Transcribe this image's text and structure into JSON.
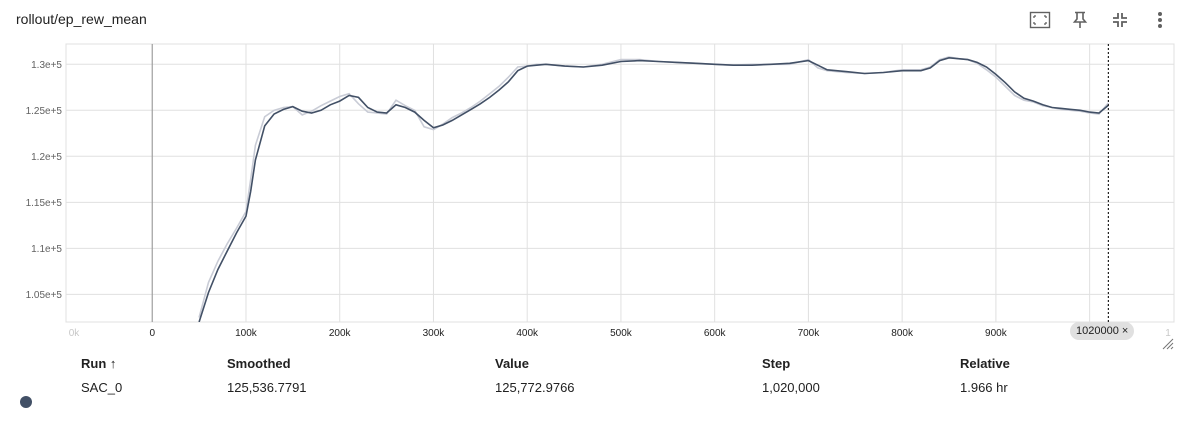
{
  "card": {
    "title": "rollout/ep_rew_mean"
  },
  "toolbar": [
    {
      "name": "fit-domain-icon"
    },
    {
      "name": "pin-icon"
    },
    {
      "name": "collapse-icon"
    },
    {
      "name": "more-vert-icon"
    }
  ],
  "chart_data": {
    "type": "line",
    "title": "",
    "xlabel": "",
    "ylabel": "",
    "xlim": [
      -92000,
      1090000
    ],
    "ylim": [
      102000,
      132200
    ],
    "x_ticks": [
      "0k",
      "0",
      "100k",
      "200k",
      "300k",
      "400k",
      "500k",
      "600k",
      "700k",
      "800k",
      "900k",
      "1"
    ],
    "y_ticks": [
      "1.05e+5",
      "1.1e+5",
      "1.15e+5",
      "1.2e+5",
      "1.25e+5",
      "1.3e+5"
    ],
    "grid": true,
    "cursor_step": 1020000,
    "colors": {
      "smoothed": "#425066",
      "raw": "#c9ccd6"
    },
    "series": [
      {
        "name": "SAC_0",
        "x": [
          50000,
          60000,
          70000,
          80000,
          90000,
          100000,
          105000,
          110000,
          120000,
          130000,
          140000,
          150000,
          160000,
          170000,
          180000,
          190000,
          200000,
          210000,
          220000,
          230000,
          240000,
          250000,
          260000,
          270000,
          280000,
          290000,
          300000,
          310000,
          320000,
          330000,
          340000,
          350000,
          360000,
          370000,
          380000,
          390000,
          400000,
          410000,
          420000,
          440000,
          460000,
          480000,
          500000,
          520000,
          540000,
          560000,
          580000,
          600000,
          620000,
          640000,
          660000,
          680000,
          700000,
          710000,
          720000,
          740000,
          760000,
          780000,
          800000,
          820000,
          830000,
          840000,
          850000,
          860000,
          870000,
          880000,
          890000,
          900000,
          910000,
          920000,
          930000,
          940000,
          950000,
          960000,
          970000,
          980000,
          990000,
          1000000,
          1010000,
          1020000
        ],
        "raw": [
          102500,
          106300,
          108600,
          110500,
          112200,
          114000,
          117500,
          121200,
          124300,
          125000,
          125300,
          125400,
          124500,
          124900,
          125500,
          126000,
          126500,
          126800,
          125700,
          124800,
          124700,
          124600,
          126100,
          125500,
          125000,
          123200,
          122900,
          123500,
          124200,
          124700,
          125300,
          126000,
          126800,
          127600,
          128600,
          129700,
          129800,
          130000,
          130000,
          129800,
          129700,
          130000,
          130500,
          130500,
          130300,
          130200,
          130100,
          130000,
          129900,
          130000,
          130000,
          130000,
          130500,
          129600,
          129300,
          129100,
          129000,
          129100,
          129400,
          129400,
          129700,
          130500,
          130800,
          130600,
          130500,
          130100,
          129400,
          128600,
          127600,
          126600,
          126100,
          125900,
          125500,
          125300,
          125100,
          125000,
          124900,
          124700,
          124600,
          125800
        ],
        "smoothed": [
          102000,
          105200,
          107700,
          109700,
          111700,
          113500,
          116200,
          119600,
          123300,
          124600,
          125100,
          125400,
          124900,
          124700,
          125000,
          125600,
          126000,
          126600,
          126400,
          125300,
          124800,
          124700,
          125600,
          125300,
          124800,
          123900,
          123100,
          123400,
          123900,
          124500,
          125100,
          125700,
          126400,
          127200,
          128100,
          129300,
          129800,
          129900,
          130000,
          129800,
          129700,
          129900,
          130300,
          130400,
          130300,
          130200,
          130100,
          130000,
          129900,
          129900,
          130000,
          130100,
          130400,
          129900,
          129400,
          129200,
          129000,
          129100,
          129300,
          129300,
          129600,
          130400,
          130700,
          130600,
          130500,
          130200,
          129700,
          128900,
          128000,
          127000,
          126300,
          126000,
          125600,
          125300,
          125200,
          125100,
          125000,
          124800,
          124700,
          125536
        ]
      }
    ]
  },
  "table": {
    "headers": {
      "run": "Run ↑",
      "smoothed": "Smoothed",
      "value": "Value",
      "step": "Step",
      "relative": "Relative"
    },
    "rows": [
      {
        "run": "SAC_0",
        "smoothed": "125,536.7791",
        "value": "125,772.9766",
        "step": "1,020,000",
        "relative": "1.966 hr",
        "color": "#425066"
      }
    ]
  },
  "step_chip": {
    "label": "1020000",
    "close": "×"
  }
}
